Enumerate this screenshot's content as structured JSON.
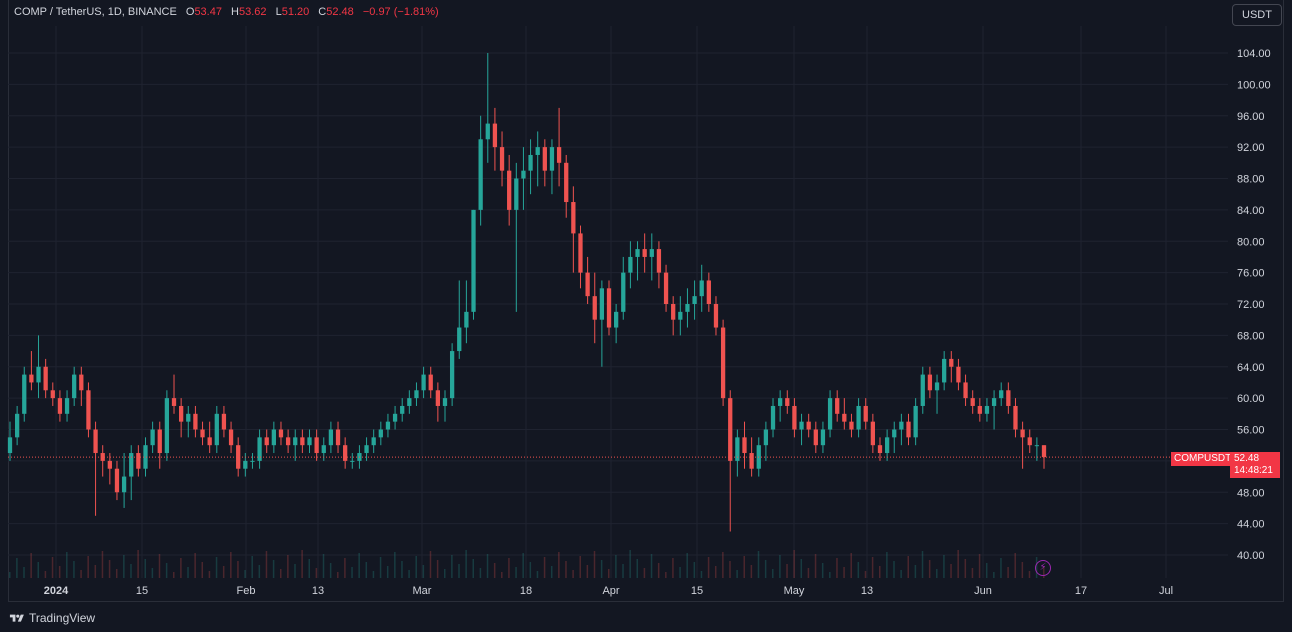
{
  "legend": {
    "symbol": "COMP / TetherUS, 1D, BINANCE",
    "open_label": "O",
    "open": "53.47",
    "high_label": "H",
    "high": "53.62",
    "low_label": "L",
    "low": "51.20",
    "close_label": "C",
    "close": "52.48",
    "change": "−0.97 (−1.81%)"
  },
  "currency_button": "USDT",
  "price_tag": {
    "symbol": "COMPUSDT",
    "last": "52.48",
    "countdown": "14:48:21"
  },
  "brand": "TradingView",
  "colors": {
    "up": "#26a69a",
    "down": "#ef5350",
    "background": "#131722",
    "grid": "#1f2330",
    "accent_purple": "#9c27b0"
  },
  "chart_data": {
    "type": "candlestick",
    "y_ticks": [
      "104.00",
      "100.00",
      "96.00",
      "92.00",
      "88.00",
      "84.00",
      "80.00",
      "76.00",
      "72.00",
      "68.00",
      "64.00",
      "60.00",
      "56.00",
      "52.00",
      "48.00",
      "44.00",
      "40.00"
    ],
    "ylim": [
      38.5,
      106.5
    ],
    "x_ticks": [
      "2024",
      "15",
      "Feb",
      "13",
      "Mar",
      "18",
      "Apr",
      "15",
      "May",
      "13",
      "Jun",
      "17",
      "Jul"
    ],
    "last_price": 52.48,
    "candles": [
      [
        53,
        57,
        52,
        55
      ],
      [
        55,
        59,
        54,
        58
      ],
      [
        58,
        64,
        57,
        63
      ],
      [
        63,
        66,
        61,
        62
      ],
      [
        62,
        68,
        60,
        64
      ],
      [
        64,
        65,
        60,
        61
      ],
      [
        61,
        62,
        59,
        60
      ],
      [
        60,
        61,
        57,
        58
      ],
      [
        58,
        61,
        57,
        60
      ],
      [
        60,
        64,
        59,
        63
      ],
      [
        63,
        64,
        59,
        61
      ],
      [
        61,
        62,
        55,
        56
      ],
      [
        56,
        57,
        45,
        53
      ],
      [
        53,
        54,
        50,
        52
      ],
      [
        52,
        53,
        49,
        51
      ],
      [
        51,
        52,
        47,
        48
      ],
      [
        48,
        53,
        46,
        50
      ],
      [
        50,
        54,
        47,
        53
      ],
      [
        53,
        54,
        50,
        51
      ],
      [
        51,
        55,
        50,
        54
      ],
      [
        54,
        57,
        53,
        56
      ],
      [
        56,
        57,
        51,
        53
      ],
      [
        53,
        61,
        52,
        60
      ],
      [
        60,
        63,
        58,
        59
      ],
      [
        59,
        60,
        55,
        57
      ],
      [
        57,
        59,
        55,
        58
      ],
      [
        58,
        59,
        55,
        56
      ],
      [
        56,
        57,
        54,
        55
      ],
      [
        55,
        57,
        53,
        54
      ],
      [
        54,
        59,
        53,
        58
      ],
      [
        58,
        59,
        55,
        56
      ],
      [
        56,
        57,
        53,
        54
      ],
      [
        54,
        55,
        50,
        51
      ],
      [
        51,
        53,
        50,
        52
      ],
      [
        52,
        53,
        51,
        52
      ],
      [
        52,
        56,
        51,
        55
      ],
      [
        55,
        56,
        53,
        54
      ],
      [
        54,
        57,
        53,
        56
      ],
      [
        56,
        57,
        54,
        55
      ],
      [
        55,
        56,
        53,
        54
      ],
      [
        54,
        56,
        52,
        55
      ],
      [
        55,
        56,
        53,
        54
      ],
      [
        54,
        56,
        53,
        55
      ],
      [
        55,
        56,
        52,
        53
      ],
      [
        53,
        55,
        52,
        54
      ],
      [
        54,
        57,
        53,
        56
      ],
      [
        56,
        57,
        53,
        54
      ],
      [
        54,
        55,
        51,
        52
      ],
      [
        52,
        53,
        51,
        52
      ],
      [
        52,
        54,
        51,
        53
      ],
      [
        53,
        55,
        52,
        54
      ],
      [
        54,
        56,
        53,
        55
      ],
      [
        55,
        57,
        54,
        56
      ],
      [
        56,
        58,
        55,
        57
      ],
      [
        57,
        59,
        56,
        58
      ],
      [
        58,
        60,
        57,
        59
      ],
      [
        59,
        61,
        58,
        60
      ],
      [
        60,
        62,
        59,
        61
      ],
      [
        61,
        64,
        60,
        63
      ],
      [
        63,
        64,
        60,
        61
      ],
      [
        61,
        62,
        57,
        59
      ],
      [
        59,
        61,
        57,
        60
      ],
      [
        60,
        67,
        59,
        66
      ],
      [
        66,
        75,
        65,
        69
      ],
      [
        69,
        75,
        67,
        71
      ],
      [
        71,
        84,
        70,
        84
      ],
      [
        84,
        96,
        82,
        93
      ],
      [
        93,
        104,
        90,
        95
      ],
      [
        95,
        97,
        89,
        92
      ],
      [
        92,
        94,
        87,
        89
      ],
      [
        89,
        91,
        82,
        84
      ],
      [
        84,
        90,
        71,
        88
      ],
      [
        88,
        92,
        84,
        89
      ],
      [
        89,
        93,
        86,
        91
      ],
      [
        91,
        94,
        87,
        92
      ],
      [
        92,
        93,
        87,
        89
      ],
      [
        89,
        93,
        86,
        92
      ],
      [
        92,
        97,
        87,
        90
      ],
      [
        90,
        91,
        83,
        85
      ],
      [
        85,
        87,
        76,
        81
      ],
      [
        81,
        82,
        74,
        76
      ],
      [
        76,
        78,
        72,
        73
      ],
      [
        73,
        76,
        67,
        70
      ],
      [
        70,
        75,
        64,
        74
      ],
      [
        74,
        75,
        68,
        69
      ],
      [
        69,
        72,
        67,
        71
      ],
      [
        71,
        78,
        70,
        76
      ],
      [
        76,
        80,
        74,
        78
      ],
      [
        78,
        80,
        75,
        79
      ],
      [
        79,
        81,
        76,
        78
      ],
      [
        78,
        81,
        75,
        79
      ],
      [
        79,
        80,
        74,
        76
      ],
      [
        76,
        77,
        71,
        72
      ],
      [
        72,
        73,
        68,
        70
      ],
      [
        70,
        73,
        68,
        71
      ],
      [
        71,
        74,
        69,
        72
      ],
      [
        72,
        75,
        70,
        73
      ],
      [
        73,
        77,
        71,
        75
      ],
      [
        75,
        76,
        71,
        72
      ],
      [
        72,
        73,
        68,
        69
      ],
      [
        69,
        70,
        59,
        60
      ],
      [
        60,
        61,
        43,
        52
      ],
      [
        52,
        56,
        50,
        55
      ],
      [
        55,
        57,
        51,
        53
      ],
      [
        53,
        55,
        50,
        51
      ],
      [
        51,
        55,
        50,
        54
      ],
      [
        54,
        57,
        52,
        56
      ],
      [
        56,
        60,
        55,
        59
      ],
      [
        59,
        61,
        57,
        60
      ],
      [
        60,
        61,
        58,
        59
      ],
      [
        59,
        60,
        55,
        56
      ],
      [
        56,
        58,
        54,
        57
      ],
      [
        57,
        58,
        55,
        56
      ],
      [
        56,
        57,
        53,
        54
      ],
      [
        54,
        57,
        53,
        56
      ],
      [
        56,
        61,
        55,
        60
      ],
      [
        60,
        61,
        57,
        58
      ],
      [
        58,
        60,
        56,
        57
      ],
      [
        57,
        58,
        55,
        56
      ],
      [
        56,
        60,
        55,
        59
      ],
      [
        59,
        60,
        56,
        57
      ],
      [
        57,
        58,
        53,
        54
      ],
      [
        54,
        55,
        52,
        53
      ],
      [
        53,
        56,
        52,
        55
      ],
      [
        55,
        57,
        53,
        56
      ],
      [
        56,
        58,
        54,
        57
      ],
      [
        57,
        58,
        54,
        55
      ],
      [
        55,
        60,
        54,
        59
      ],
      [
        59,
        64,
        58,
        63
      ],
      [
        63,
        64,
        60,
        61
      ],
      [
        61,
        63,
        58,
        62
      ],
      [
        62,
        66,
        61,
        65
      ],
      [
        65,
        66,
        62,
        64
      ],
      [
        64,
        65,
        61,
        62
      ],
      [
        62,
        63,
        59,
        60
      ],
      [
        60,
        61,
        58,
        59
      ],
      [
        59,
        60,
        57,
        58
      ],
      [
        58,
        60,
        57,
        59
      ],
      [
        59,
        61,
        56,
        60
      ],
      [
        60,
        62,
        59,
        61
      ],
      [
        61,
        62,
        58,
        59
      ],
      [
        59,
        60,
        55,
        56
      ],
      [
        56,
        57,
        51,
        55
      ],
      [
        55,
        56,
        53,
        54
      ],
      [
        54,
        55,
        52,
        54
      ],
      [
        54,
        54,
        51,
        52.48
      ]
    ]
  }
}
